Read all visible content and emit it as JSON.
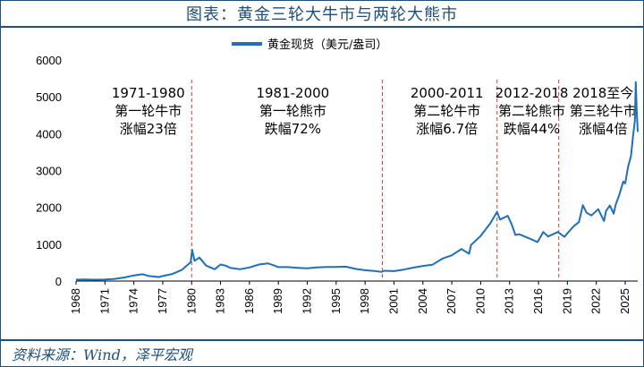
{
  "title": "图表：黄金三轮大牛市与两轮大熊市",
  "source": "资料来源：Wind，泽平宏观",
  "chart_data": {
    "type": "line",
    "legend": {
      "label": "黄金现货（美元/盎司）",
      "placement": "top-center"
    },
    "ylim": [
      0,
      6000
    ],
    "yticks": [
      0,
      1000,
      2000,
      3000,
      4000,
      5000,
      6000
    ],
    "xlim": [
      1968,
      2026.3
    ],
    "xticks": [
      "1968",
      "1971",
      "1974",
      "1977",
      "1980",
      "1983",
      "1986",
      "1989",
      "1992",
      "1995",
      "1998",
      "2001",
      "2004",
      "2007",
      "2010",
      "2013",
      "2016",
      "2019",
      "2022",
      "2025"
    ],
    "grid": false,
    "series": [
      {
        "name": "黄金现货（美元/盎司）",
        "color": "#1f6fba",
        "points": [
          [
            1968,
            38
          ],
          [
            1969,
            42
          ],
          [
            1970,
            36
          ],
          [
            1971,
            41
          ],
          [
            1972,
            58
          ],
          [
            1973,
            97
          ],
          [
            1974,
            154
          ],
          [
            1974.9,
            185
          ],
          [
            1975.5,
            140
          ],
          [
            1976.6,
            110
          ],
          [
            1977,
            135
          ],
          [
            1978,
            193
          ],
          [
            1979,
            307
          ],
          [
            1979.9,
            512
          ],
          [
            1980.05,
            850
          ],
          [
            1980.3,
            550
          ],
          [
            1980.8,
            640
          ],
          [
            1981.5,
            420
          ],
          [
            1982.4,
            320
          ],
          [
            1983,
            450
          ],
          [
            1983.5,
            420
          ],
          [
            1984,
            360
          ],
          [
            1985,
            320
          ],
          [
            1986,
            370
          ],
          [
            1987,
            450
          ],
          [
            1987.9,
            480
          ],
          [
            1988.5,
            430
          ],
          [
            1989,
            380
          ],
          [
            1990,
            380
          ],
          [
            1991,
            360
          ],
          [
            1992,
            345
          ],
          [
            1993,
            370
          ],
          [
            1994,
            385
          ],
          [
            1995,
            385
          ],
          [
            1996,
            390
          ],
          [
            1997,
            330
          ],
          [
            1998,
            295
          ],
          [
            1999,
            275
          ],
          [
            1999.7,
            250
          ],
          [
            2000,
            280
          ],
          [
            2001,
            270
          ],
          [
            2002,
            310
          ],
          [
            2003,
            365
          ],
          [
            2004,
            410
          ],
          [
            2005,
            445
          ],
          [
            2006,
            605
          ],
          [
            2007,
            700
          ],
          [
            2008,
            870
          ],
          [
            2008.8,
            740
          ],
          [
            2009,
            980
          ],
          [
            2010,
            1225
          ],
          [
            2011,
            1570
          ],
          [
            2011.7,
            1880
          ],
          [
            2012,
            1670
          ],
          [
            2012.8,
            1770
          ],
          [
            2013.2,
            1550
          ],
          [
            2013.6,
            1250
          ],
          [
            2014,
            1270
          ],
          [
            2015,
            1160
          ],
          [
            2015.9,
            1060
          ],
          [
            2016.5,
            1330
          ],
          [
            2017,
            1210
          ],
          [
            2018,
            1330
          ],
          [
            2018.7,
            1200
          ],
          [
            2019,
            1300
          ],
          [
            2019.7,
            1500
          ],
          [
            2020.2,
            1600
          ],
          [
            2020.6,
            2060
          ],
          [
            2021,
            1850
          ],
          [
            2021.5,
            1780
          ],
          [
            2022.2,
            1950
          ],
          [
            2022.8,
            1630
          ],
          [
            2023,
            1900
          ],
          [
            2023.4,
            2050
          ],
          [
            2023.8,
            1830
          ],
          [
            2024,
            2060
          ],
          [
            2024.4,
            2350
          ],
          [
            2024.8,
            2700
          ],
          [
            2025,
            2650
          ],
          [
            2025.3,
            3100
          ],
          [
            2025.6,
            3400
          ],
          [
            2025.8,
            3900
          ],
          [
            2026,
            4350
          ],
          [
            2026.1,
            5400
          ],
          [
            2026.2,
            4600
          ],
          [
            2026.3,
            4050
          ]
        ]
      }
    ],
    "periods": [
      {
        "range": "1971-1980",
        "line1": "第一轮牛市",
        "line2": "涨幅23倍",
        "x_center": 1975.5
      },
      {
        "range": "1981-2000",
        "line1": "第一轮熊市",
        "line2": "跌幅72%",
        "x_center": 1990.5
      },
      {
        "range": "2000-2011",
        "line1": "第二轮牛市",
        "line2": "涨幅6.7倍",
        "x_center": 2006.5
      },
      {
        "range": "2012-2018",
        "line1": "第二轮熊市",
        "line2": "跌幅44%",
        "x_center": 2015.3
      },
      {
        "range": "2018至今",
        "line1": "第三轮牛市",
        "line2": "涨幅4倍",
        "x_center": 2022.7
      }
    ],
    "dividers": [
      1980.0,
      1999.8,
      2011.7,
      2018.1
    ],
    "divider_color": "#e8352a"
  }
}
